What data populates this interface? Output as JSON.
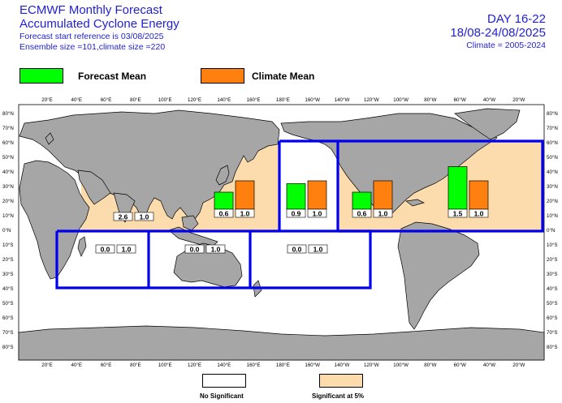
{
  "header": {
    "title_line1": "ECMWF Monthly Forecast",
    "title_line2": "Accumulated Cyclone Energy",
    "start_ref": "Forecast start reference is 03/08/2025",
    "ensemble": "Ensemble size =101,climate size =220",
    "day_range": "DAY 16-22",
    "date_range": "18/08-24/08/2025",
    "climate_period": "Climate = 2005-2024"
  },
  "legend": {
    "forecast_label": "Forecast Mean",
    "climate_label": "Climate Mean",
    "forecast_color": "#00ff00",
    "climate_color": "#ff7f0f"
  },
  "footer": {
    "no_sig_label": "No Significant",
    "sig_label": "Significant at 5%",
    "no_sig_color": "#ffffff",
    "sig_color": "#fcdcad"
  },
  "axes": {
    "top_lon": [
      "20°E",
      "40°E",
      "60°E",
      "80°E",
      "100°E",
      "120°E",
      "140°E",
      "160°E",
      "180°E",
      "160°W",
      "140°W",
      "120°W",
      "100°W",
      "80°W",
      "60°W",
      "40°W",
      "20°W"
    ],
    "lat_left": [
      "80°N",
      "70°N",
      "60°N",
      "50°N",
      "40°N",
      "30°N",
      "20°N",
      "10°N",
      "0°N",
      "10°S",
      "20°S",
      "30°S",
      "40°S",
      "50°S",
      "60°S",
      "70°S",
      "80°S"
    ],
    "lat_right": [
      "80°N",
      "70°N",
      "60°N",
      "50°N",
      "40°N",
      "30°N",
      "20°N",
      "10°N",
      "0°N",
      "10°S",
      "20°S",
      "30°S",
      "40°S",
      "50°S",
      "60°S",
      "70°S",
      "80°S"
    ]
  },
  "colors": {
    "land": "#a6a6a6",
    "ocean": "#ffffff",
    "box_border": "#0000ee"
  },
  "chart_data": {
    "type": "bar",
    "scale_note": "bars drawn proportional to ACE value",
    "regions": [
      {
        "id": "north-indian",
        "forecast": 2.6,
        "climate": 1.0,
        "forecast_label": "2.6",
        "climate_label": "1.0",
        "significant": true
      },
      {
        "id": "south-indian",
        "forecast": 0.0,
        "climate": 1.0,
        "forecast_label": "0.0",
        "climate_label": "1.0",
        "significant": false
      },
      {
        "id": "australian",
        "forecast": 0.0,
        "climate": 1.0,
        "forecast_label": "0.0",
        "climate_label": "1.0",
        "significant": false
      },
      {
        "id": "west-pacific",
        "forecast": 0.6,
        "climate": 1.0,
        "forecast_label": "0.6",
        "climate_label": "1.0",
        "significant": true
      },
      {
        "id": "central-pacific",
        "forecast": 0.9,
        "climate": 1.0,
        "forecast_label": "0.9",
        "climate_label": "1.0",
        "significant": false
      },
      {
        "id": "south-pacific",
        "forecast": 0.0,
        "climate": 1.0,
        "forecast_label": "0.0",
        "climate_label": "1.0",
        "significant": false
      },
      {
        "id": "east-pacific",
        "forecast": 0.6,
        "climate": 1.0,
        "forecast_label": "0.6",
        "climate_label": "1.0",
        "significant": true
      },
      {
        "id": "atlantic",
        "forecast": 1.5,
        "climate": 1.0,
        "forecast_label": "1.5",
        "climate_label": "1.0",
        "significant": true
      }
    ]
  }
}
